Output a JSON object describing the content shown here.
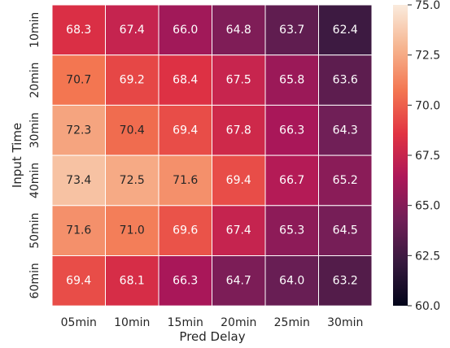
{
  "chart_data": {
    "type": "heatmap",
    "title": "",
    "xlabel": "Pred Delay",
    "ylabel": "Input Time",
    "x_categories": [
      "05min",
      "10min",
      "15min",
      "20min",
      "25min",
      "30min"
    ],
    "y_categories": [
      "10min",
      "20min",
      "30min",
      "40min",
      "50min",
      "60min"
    ],
    "values": [
      [
        68.3,
        67.4,
        66.0,
        64.8,
        63.7,
        62.4
      ],
      [
        70.7,
        69.2,
        68.4,
        67.5,
        65.8,
        63.6
      ],
      [
        72.3,
        70.4,
        69.4,
        67.8,
        66.3,
        64.3
      ],
      [
        73.4,
        72.5,
        71.6,
        69.4,
        66.7,
        65.2
      ],
      [
        71.6,
        71.0,
        69.6,
        67.4,
        65.3,
        64.5
      ],
      [
        69.4,
        68.1,
        66.3,
        64.7,
        64.0,
        63.2
      ]
    ],
    "value_labels": [
      [
        "68.3",
        "67.4",
        "66.0",
        "64.8",
        "63.7",
        "62.4"
      ],
      [
        "70.7",
        "69.2",
        "68.4",
        "67.5",
        "65.8",
        "63.6"
      ],
      [
        "72.3",
        "70.4",
        "69.4",
        "67.8",
        "66.3",
        "64.3"
      ],
      [
        "73.4",
        "72.5",
        "71.6",
        "69.4",
        "66.7",
        "65.2"
      ],
      [
        "71.6",
        "71.0",
        "69.6",
        "67.4",
        "65.3",
        "64.5"
      ],
      [
        "69.4",
        "68.1",
        "66.3",
        "64.7",
        "64.0",
        "63.2"
      ]
    ],
    "colorbar": {
      "range": [
        60.0,
        75.0
      ],
      "ticks": [
        60.0,
        62.5,
        65.0,
        67.5,
        70.0,
        72.5,
        75.0
      ],
      "tick_labels": [
        "60.0",
        "62.5",
        "65.0",
        "67.5",
        "70.0",
        "72.5",
        "75.0"
      ],
      "colormap": "rocket",
      "colors": [
        "#03051a",
        "#36193e",
        "#701f57",
        "#ad1759",
        "#e13342",
        "#f37651",
        "#f6b48f",
        "#faebdd"
      ]
    },
    "grid": false,
    "legend": "colorbar-right"
  }
}
